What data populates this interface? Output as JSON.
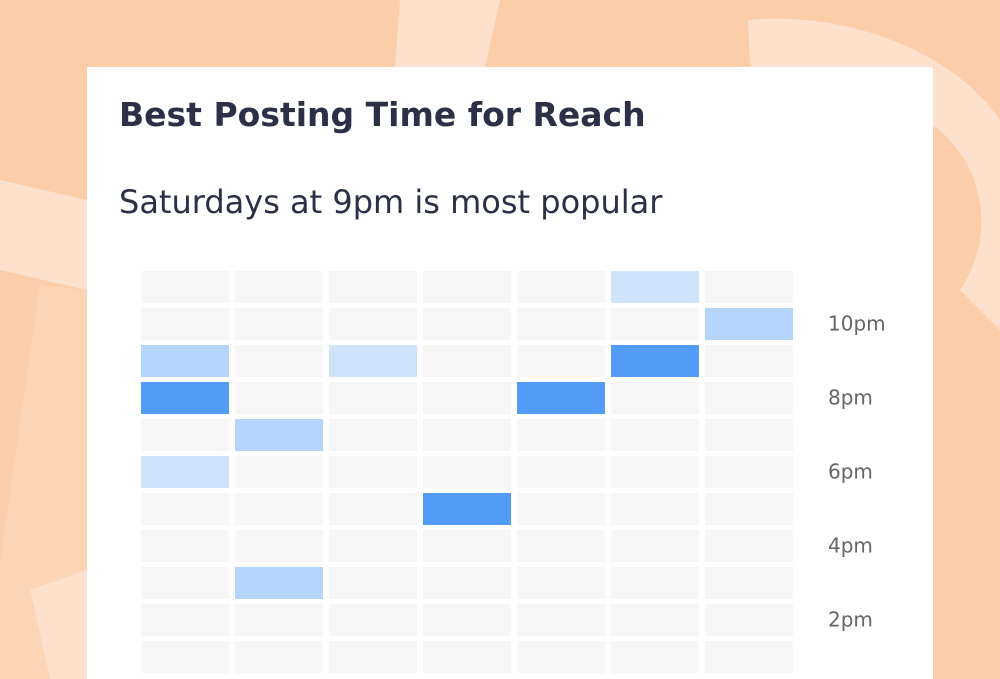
{
  "chart_data": {
    "type": "heatmap",
    "title": "Best Posting Time for Reach",
    "subtitle": "Saturdays at 9pm is most popular",
    "rows": [
      null,
      "10pm",
      null,
      "8pm",
      null,
      "6pm",
      null,
      "4pm",
      null,
      "2pm",
      null
    ],
    "colors": [
      "#f6f6f6",
      "#cfe3fb",
      "#b6d5fb",
      "#529bf7"
    ],
    "values": [
      [
        0,
        0,
        0,
        0,
        0,
        1,
        0
      ],
      [
        0,
        0,
        0,
        0,
        0,
        0,
        2
      ],
      [
        2,
        0,
        1,
        0,
        0,
        3,
        0
      ],
      [
        3,
        0,
        0,
        0,
        3,
        0,
        0
      ],
      [
        0,
        2,
        0,
        0,
        0,
        0,
        0
      ],
      [
        1,
        0,
        0,
        0,
        0,
        0,
        0
      ],
      [
        0,
        0,
        0,
        3,
        0,
        0,
        0
      ],
      [
        0,
        0,
        0,
        0,
        0,
        0,
        0
      ],
      [
        0,
        2,
        0,
        0,
        0,
        0,
        0
      ],
      [
        0,
        0,
        0,
        0,
        0,
        0,
        0
      ],
      [
        0,
        0,
        0,
        0,
        0,
        0,
        0
      ]
    ]
  }
}
